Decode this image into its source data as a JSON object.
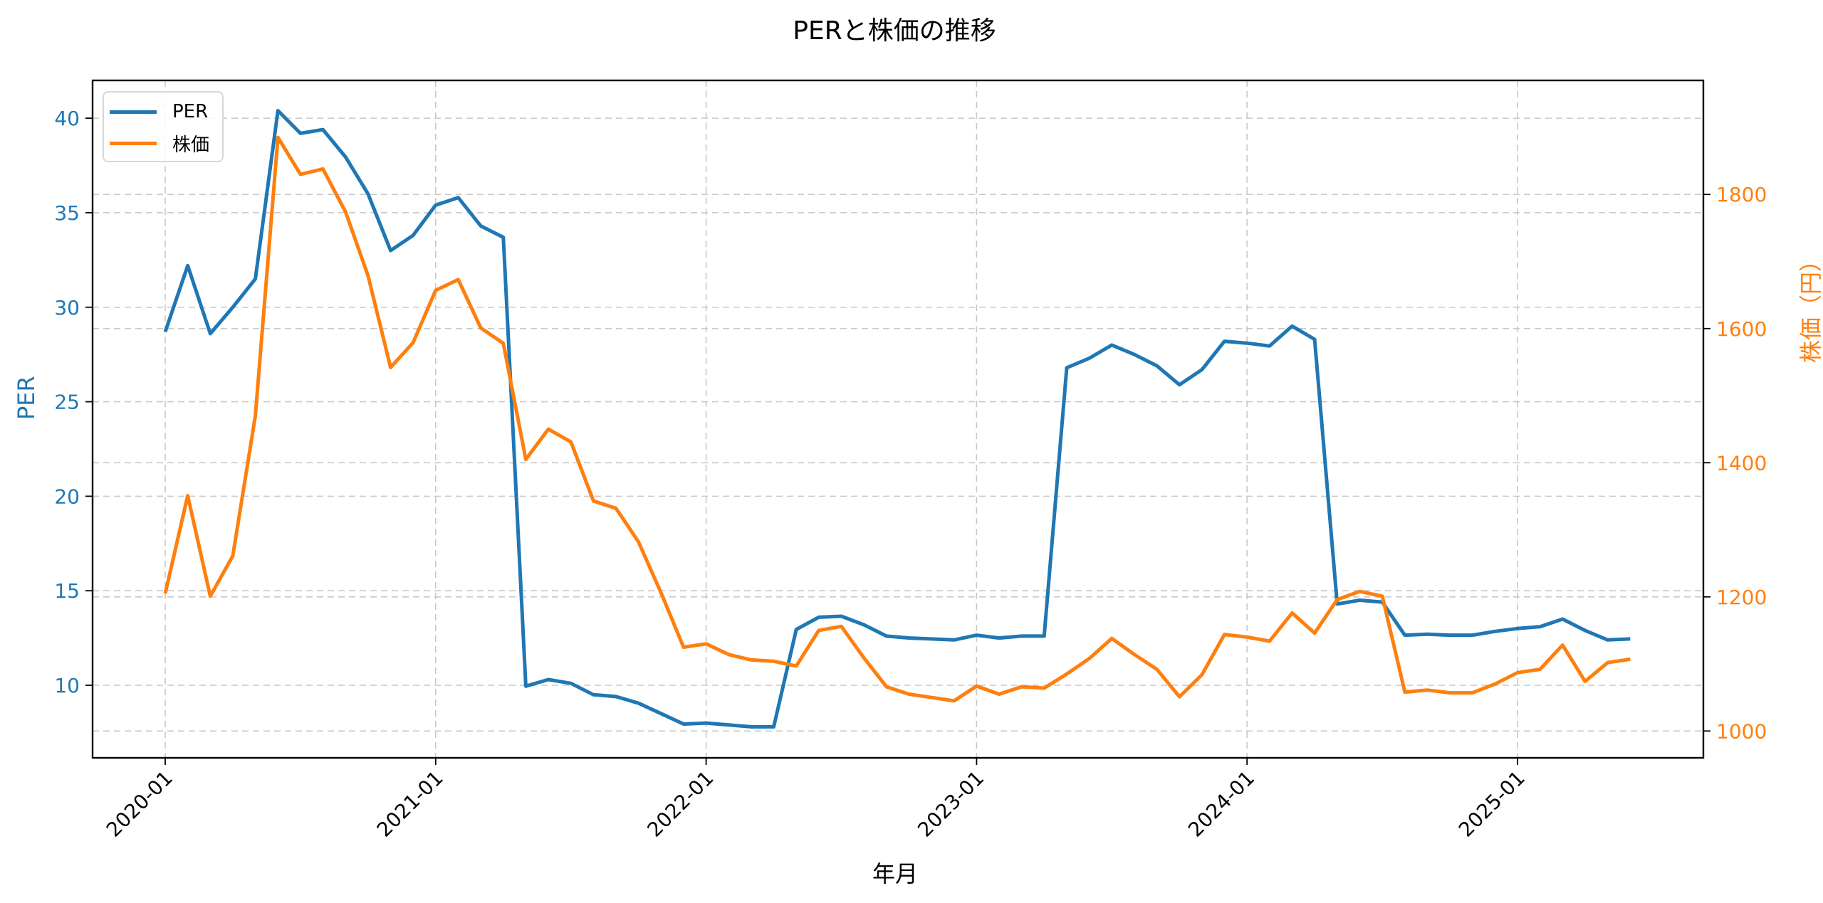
{
  "chart_data": {
    "type": "line",
    "title": "PERと株価の推移",
    "xlabel": "年月",
    "ylabel": "PER",
    "ylabel_right": "株価（円）",
    "ylim": [
      6.16,
      42.0
    ],
    "ylim_right": [
      960,
      1970
    ],
    "grid": true,
    "legend_position": "upper left",
    "x_tick_labels": [
      "2020-01",
      "2021-01",
      "2022-01",
      "2023-01",
      "2024-01",
      "2025-01"
    ],
    "y_ticks": [
      10,
      15,
      20,
      25,
      30,
      35,
      40
    ],
    "y_ticks_right": [
      1000,
      1200,
      1400,
      1600,
      1800
    ],
    "x": [
      "2020-01",
      "2020-02",
      "2020-03",
      "2020-04",
      "2020-05",
      "2020-06",
      "2020-07",
      "2020-08",
      "2020-09",
      "2020-10",
      "2020-11",
      "2020-12",
      "2021-01",
      "2021-02",
      "2021-03",
      "2021-04",
      "2021-05",
      "2021-06",
      "2021-07",
      "2021-08",
      "2021-09",
      "2021-10",
      "2021-11",
      "2021-12",
      "2022-01",
      "2022-02",
      "2022-03",
      "2022-04",
      "2022-05",
      "2022-06",
      "2022-07",
      "2022-08",
      "2022-09",
      "2022-10",
      "2022-11",
      "2022-12",
      "2023-01",
      "2023-02",
      "2023-03",
      "2023-04",
      "2023-05",
      "2023-06",
      "2023-07",
      "2023-08",
      "2023-09",
      "2023-10",
      "2023-11",
      "2023-12",
      "2024-01",
      "2024-02",
      "2024-03",
      "2024-04",
      "2024-05",
      "2024-06",
      "2024-07",
      "2024-08",
      "2024-09",
      "2024-10",
      "2024-11",
      "2024-12",
      "2025-01",
      "2025-02",
      "2025-03",
      "2025-04",
      "2025-05",
      "2025-06"
    ],
    "series": [
      {
        "name": "PER",
        "axis": "left",
        "color": "#1f77b4",
        "values": [
          28.7,
          32.2,
          28.6,
          30.0,
          31.5,
          40.4,
          39.2,
          39.4,
          37.95,
          36.0,
          33.0,
          33.8,
          35.4,
          35.8,
          34.3,
          33.7,
          9.95,
          10.3,
          10.1,
          9.5,
          9.4,
          9.05,
          8.5,
          7.95,
          8.0,
          7.9,
          7.8,
          7.8,
          12.95,
          13.6,
          13.65,
          13.2,
          12.6,
          12.5,
          12.45,
          12.4,
          12.65,
          12.5,
          12.6,
          12.6,
          26.8,
          27.3,
          28.0,
          27.5,
          26.9,
          25.9,
          26.7,
          28.2,
          28.1,
          27.95,
          29.0,
          28.3,
          14.3,
          14.5,
          14.4,
          12.65,
          12.7,
          12.65,
          12.65,
          12.85,
          13.0,
          13.1,
          13.5,
          12.9,
          12.4,
          12.45
        ]
      },
      {
        "name": "株価",
        "axis": "right",
        "color": "#ff7f0e",
        "values": [
          1205,
          1351,
          1201,
          1261,
          1470,
          1885,
          1830,
          1838,
          1774,
          1679,
          1542,
          1579,
          1657,
          1673,
          1601,
          1578,
          1405,
          1450,
          1431,
          1343,
          1332,
          1282,
          1206,
          1125,
          1130,
          1114,
          1106,
          1104,
          1097,
          1150,
          1156,
          1109,
          1066,
          1055,
          1050,
          1045,
          1067,
          1055,
          1066,
          1064,
          1085,
          1108,
          1138,
          1114,
          1092,
          1051,
          1084,
          1144,
          1140,
          1134,
          1176,
          1146,
          1196,
          1208,
          1201,
          1058,
          1061,
          1057,
          1057,
          1070,
          1087,
          1092,
          1128,
          1074,
          1102,
          1107
        ]
      }
    ]
  },
  "title": "PERと株価の推移",
  "axes": {
    "xlabel": "年月",
    "ylabel_left": "PER",
    "ylabel_right": "株価（円）",
    "left_color": "#1f77b4",
    "right_color": "#ff7f0e"
  },
  "legend": {
    "items": [
      {
        "label": "PER",
        "color": "#1f77b4"
      },
      {
        "label": "株価",
        "color": "#ff7f0e"
      }
    ]
  }
}
